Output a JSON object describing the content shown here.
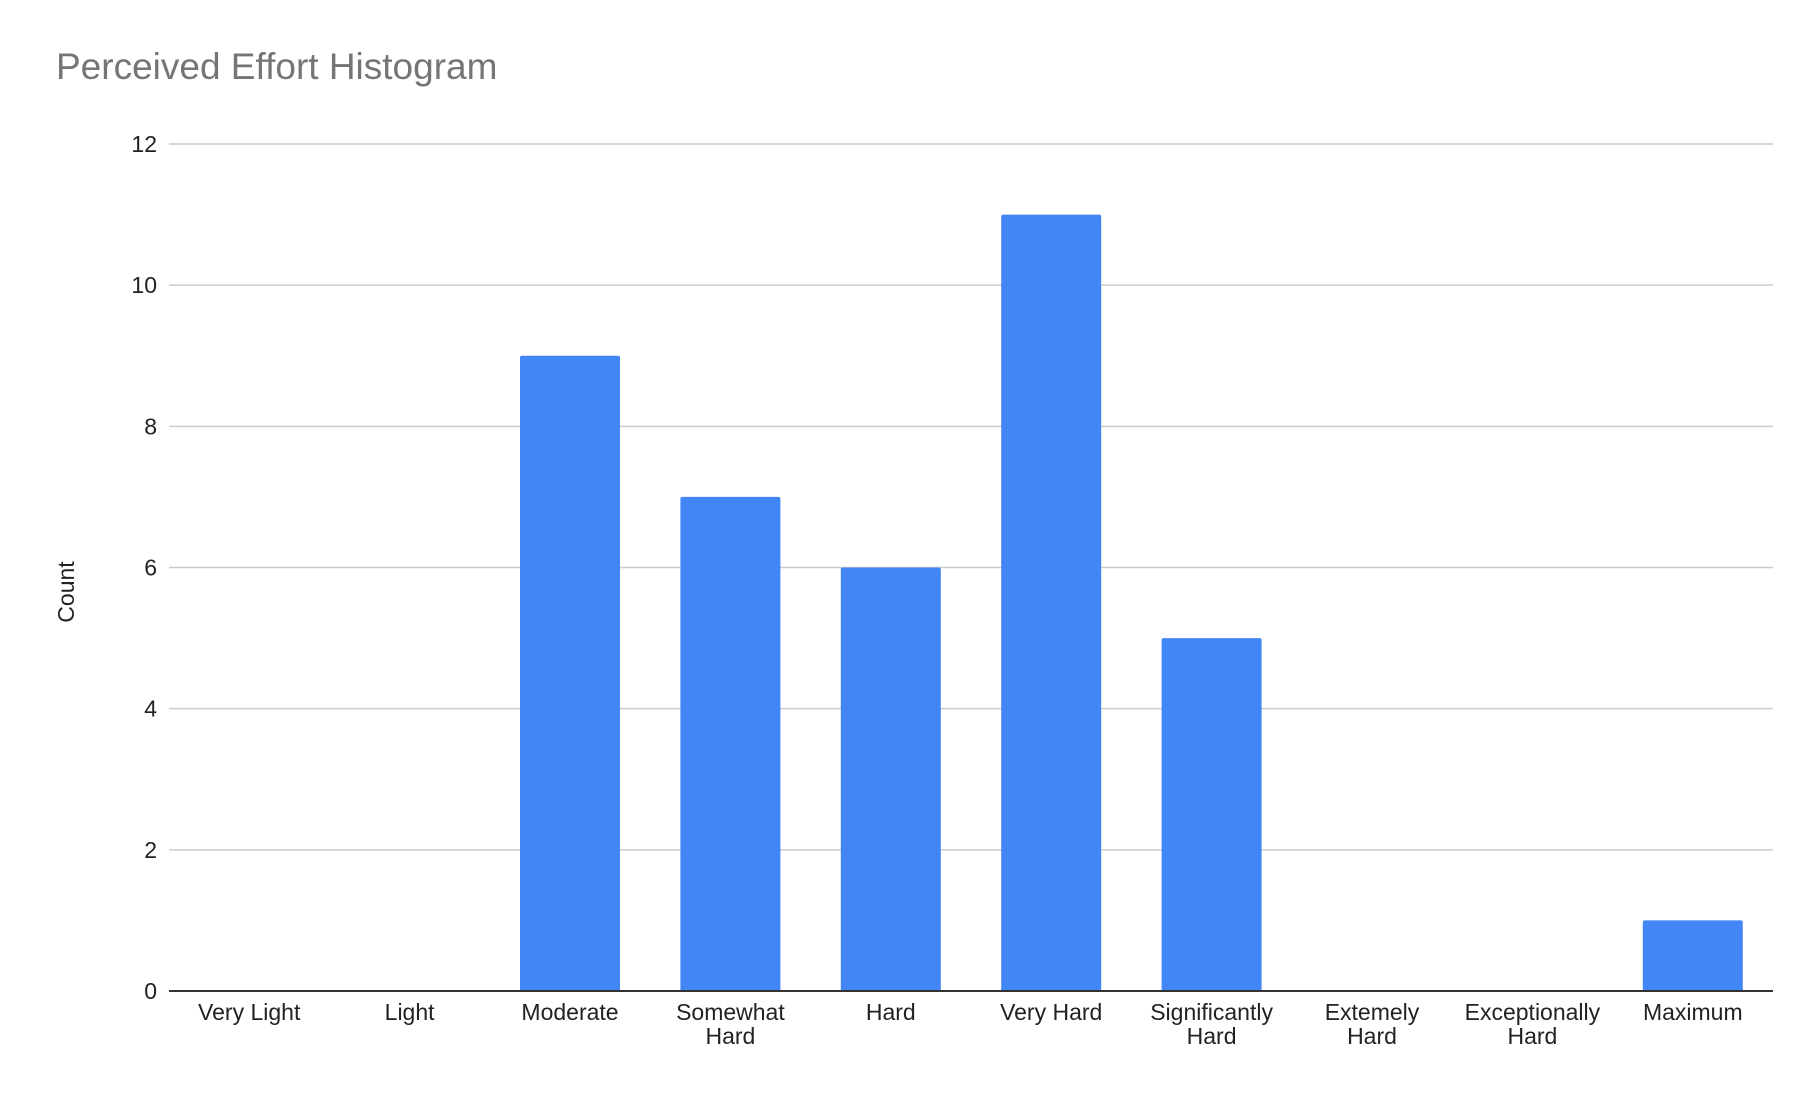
{
  "chart_data": {
    "type": "bar",
    "title": "Perceived Effort Histogram",
    "xlabel": "",
    "ylabel": "Count",
    "categories": [
      [
        "Very Light"
      ],
      [
        "Light"
      ],
      [
        "Moderate"
      ],
      [
        "Somewhat",
        "Hard"
      ],
      [
        "Hard"
      ],
      [
        "Very Hard"
      ],
      [
        "Significantly",
        "Hard"
      ],
      [
        "Extemely",
        "Hard"
      ],
      [
        "Exceptionally",
        "Hard"
      ],
      [
        "Maximum"
      ]
    ],
    "values": [
      0,
      0,
      9,
      7,
      6,
      11,
      5,
      0,
      0,
      1
    ],
    "ylim": [
      0,
      12
    ],
    "yticks": [
      0,
      2,
      4,
      6,
      8,
      10,
      12
    ],
    "grid": true,
    "legend": "none",
    "colors": {
      "bar": "#4285F4",
      "grid": "#cccccc",
      "axis": "#333333",
      "title": "#757575",
      "text": "#222222"
    }
  }
}
